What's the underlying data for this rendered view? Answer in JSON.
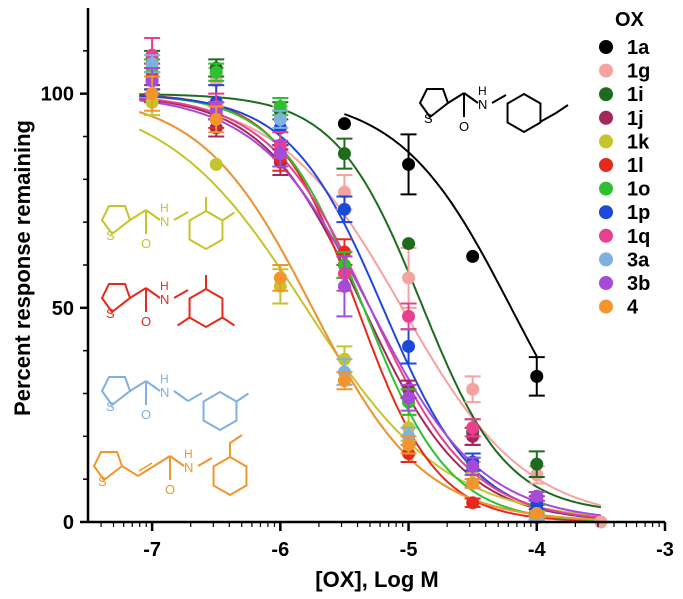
{
  "chart_data": {
    "type": "scatter",
    "xlabel": "[OX], Log M",
    "ylabel": "Percent response remaining",
    "xlim": [
      -7.5,
      -3
    ],
    "ylim": [
      0,
      120
    ],
    "xticks": [
      "-7",
      "-6",
      "-5",
      "-4",
      "-3"
    ],
    "yticks": [
      "0",
      "50",
      "100"
    ],
    "legend_title": "OX",
    "legend_position": "top-right",
    "series": [
      {
        "name": "1a",
        "color": "#000000",
        "x": [
          -5.5,
          -5,
          -4.5,
          -4
        ],
        "y": [
          93,
          83.5,
          62,
          34
        ],
        "err": [
          0,
          7,
          0,
          4.5
        ],
        "fit": {
          "top": 100,
          "bottom": 0,
          "logEC50": -4.2,
          "hill": 1.0
        }
      },
      {
        "name": "1g",
        "color": "#f5a3a0",
        "x": [
          -7,
          -6.5,
          -6,
          -5.5,
          -5,
          -4.5,
          -4,
          -3.5
        ],
        "y": [
          104,
          103,
          94,
          77,
          57,
          31,
          11,
          0
        ],
        "err": [
          3,
          3,
          3,
          4,
          7,
          3,
          2,
          0
        ],
        "fit": {
          "top": 100,
          "bottom": 0,
          "logEC50": -5.05,
          "hill": 0.9
        }
      },
      {
        "name": "1i",
        "color": "#1e6b1e",
        "x": [
          -7,
          -6.5,
          -6,
          -5.5,
          -5,
          -4.5,
          -4
        ],
        "y": [
          108,
          106,
          96,
          86,
          65,
          21,
          13.5
        ],
        "err": [
          2,
          2,
          2,
          3.5,
          0,
          3,
          3
        ],
        "fit": {
          "top": 100,
          "bottom": 2,
          "logEC50": -4.9,
          "hill": 1.3
        }
      },
      {
        "name": "1j",
        "color": "#a3285a",
        "x": [
          -7,
          -6.5,
          -6,
          -5.5,
          -5,
          -4.5,
          -4
        ],
        "y": [
          100,
          92,
          84,
          60,
          31,
          20,
          5
        ],
        "err": [
          2,
          2,
          3,
          3,
          2,
          2,
          1
        ],
        "fit": {
          "top": 100,
          "bottom": 0,
          "logEC50": -5.35,
          "hill": 1.1
        }
      },
      {
        "name": "1k",
        "color": "#c6c42c",
        "x": [
          -7,
          -6.5,
          -6,
          -5.5,
          -5,
          -4.5,
          -4
        ],
        "y": [
          98,
          83.5,
          55,
          38,
          22,
          12,
          2
        ],
        "err": [
          3,
          0,
          4,
          3,
          3,
          2,
          1
        ],
        "fit": {
          "top": 100,
          "bottom": 0,
          "logEC50": -5.8,
          "hill": 0.8
        }
      },
      {
        "name": "1l",
        "color": "#e52a1c",
        "x": [
          -7,
          -6.5,
          -6,
          -5.5,
          -5,
          -4.5,
          -4
        ],
        "y": [
          104,
          95,
          85,
          63,
          16,
          4.5,
          1
        ],
        "err": [
          3,
          3,
          3,
          3,
          2,
          1,
          0.5
        ],
        "fit": {
          "top": 100,
          "bottom": 0,
          "logEC50": -5.4,
          "hill": 1.4
        }
      },
      {
        "name": "1o",
        "color": "#2ec02e",
        "x": [
          -7,
          -6.5,
          -6,
          -5.5,
          -5,
          -4.5,
          -4
        ],
        "y": [
          106,
          105,
          97,
          60,
          28,
          13,
          3
        ],
        "err": [
          2,
          2,
          2,
          3,
          3,
          2,
          1
        ],
        "fit": {
          "top": 100,
          "bottom": 0,
          "logEC50": -5.35,
          "hill": 1.3
        }
      },
      {
        "name": "1p",
        "color": "#1e48d8",
        "x": [
          -7,
          -6.5,
          -6,
          -5.5,
          -5,
          -4.5,
          -4
        ],
        "y": [
          103,
          98,
          92,
          73,
          41,
          14,
          4
        ],
        "err": [
          2,
          4,
          4,
          3,
          4,
          2,
          1
        ],
        "fit": {
          "top": 100,
          "bottom": 0,
          "logEC50": -5.2,
          "hill": 1.2
        }
      },
      {
        "name": "1q",
        "color": "#e8408e",
        "x": [
          -7,
          -6.5,
          -6,
          -5.5,
          -5,
          -4.5,
          -4
        ],
        "y": [
          109,
          97,
          88,
          58,
          48,
          22,
          6
        ],
        "err": [
          4,
          3,
          3,
          4,
          3,
          2,
          1
        ],
        "fit": {
          "top": 100,
          "bottom": 0,
          "logEC50": -5.3,
          "hill": 1.1
        }
      },
      {
        "name": "3a",
        "color": "#7fb0e0",
        "x": [
          -7,
          -6.5,
          -6,
          -5.5,
          -5,
          -4.5,
          -4
        ],
        "y": [
          107,
          96,
          94,
          35,
          20,
          9,
          1
        ],
        "err": [
          2,
          2,
          2,
          3,
          2,
          1,
          0.5
        ],
        "fit": {
          "top": 100,
          "bottom": 0,
          "logEC50": -5.75,
          "hill": 1.0
        }
      },
      {
        "name": "3b",
        "color": "#a64ad8",
        "x": [
          -7,
          -6.5,
          -6,
          -5.5,
          -5,
          -4.5,
          -4
        ],
        "y": [
          103,
          96,
          86,
          55,
          29,
          13,
          6
        ],
        "err": [
          3,
          2,
          3,
          7,
          3,
          2,
          1
        ],
        "fit": {
          "top": 100,
          "bottom": 0,
          "logEC50": -5.3,
          "hill": 1.0
        }
      },
      {
        "name": "4",
        "color": "#f2952c",
        "x": [
          -7,
          -6.5,
          -6,
          -5.5,
          -5,
          -4.5,
          -4
        ],
        "y": [
          100,
          94,
          57,
          33,
          18,
          9,
          2
        ],
        "err": [
          4,
          3,
          3,
          2,
          2,
          1,
          0.5
        ],
        "fit": {
          "top": 100,
          "bottom": 0,
          "logEC50": -5.75,
          "hill": 1.0
        }
      }
    ],
    "structures": [
      {
        "id": "1a",
        "color": "#000000",
        "labels": [
          "S",
          "O",
          "N",
          "H"
        ]
      },
      {
        "id": "1k",
        "color": "#c6c42c",
        "labels": [
          "S",
          "O",
          "N",
          "H"
        ]
      },
      {
        "id": "1l",
        "color": "#e52a1c",
        "labels": [
          "S",
          "O",
          "N",
          "H"
        ]
      },
      {
        "id": "3a",
        "color": "#7fb0e0",
        "labels": [
          "S",
          "O",
          "N",
          "H"
        ]
      },
      {
        "id": "4",
        "color": "#f2952c",
        "labels": [
          "S",
          "O",
          "N",
          "H"
        ]
      }
    ]
  }
}
